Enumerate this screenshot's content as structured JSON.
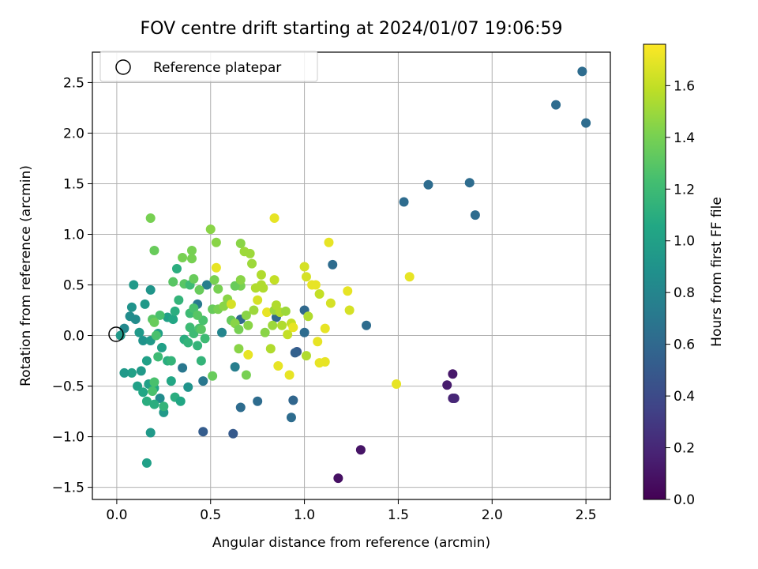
{
  "chart_data": {
    "type": "scatter",
    "title": "FOV centre drift starting at 2024/01/07 19:06:59",
    "xlabel": "Angular distance from reference (arcmin)",
    "ylabel": "Rotation from reference (arcmin)",
    "xlim": [
      -0.13,
      2.63
    ],
    "ylim": [
      -1.62,
      2.8
    ],
    "x_ticks": [
      0.0,
      0.5,
      1.0,
      1.5,
      2.0,
      2.5
    ],
    "y_ticks": [
      -1.5,
      -1.0,
      -0.5,
      0.0,
      0.5,
      1.0,
      1.5,
      2.0,
      2.5
    ],
    "x_tick_labels": [
      "0.0",
      "0.5",
      "1.0",
      "1.5",
      "2.0",
      "2.5"
    ],
    "y_tick_labels": [
      "−1.5",
      "−1.0",
      "−0.5",
      "0.0",
      "0.5",
      "1.0",
      "1.5",
      "2.0",
      "2.5"
    ],
    "grid": true,
    "colormap": "viridis",
    "colorbar": {
      "label": "Hours from first FF file",
      "range": [
        0.0,
        1.76
      ],
      "ticks": [
        0.0,
        0.2,
        0.4,
        0.6,
        0.8,
        1.0,
        1.2,
        1.4,
        1.6
      ],
      "tick_labels": [
        "0.0",
        "0.2",
        "0.4",
        "0.6",
        "0.8",
        "1.0",
        "1.2",
        "1.4",
        "1.6"
      ]
    },
    "legend": {
      "placement": "top-left",
      "entries": [
        {
          "label": "Reference platepar",
          "marker": "open-circle"
        }
      ]
    },
    "reference_point": {
      "x": 0.0,
      "y": 0.0
    },
    "points": [
      {
        "x": 1.18,
        "y": -1.41,
        "c": 0.08
      },
      {
        "x": 1.3,
        "y": -1.13,
        "c": 0.1
      },
      {
        "x": 1.76,
        "y": -0.49,
        "c": 0.14
      },
      {
        "x": 1.79,
        "y": -0.38,
        "c": 0.12
      },
      {
        "x": 1.79,
        "y": -0.62,
        "c": 0.18
      },
      {
        "x": 1.8,
        "y": -0.62,
        "c": 0.2
      },
      {
        "x": 2.48,
        "y": 2.61,
        "c": 0.62
      },
      {
        "x": 2.34,
        "y": 2.28,
        "c": 0.62
      },
      {
        "x": 2.5,
        "y": 2.1,
        "c": 0.62
      },
      {
        "x": 1.66,
        "y": 1.49,
        "c": 0.62
      },
      {
        "x": 1.88,
        "y": 1.51,
        "c": 0.62
      },
      {
        "x": 1.53,
        "y": 1.32,
        "c": 0.62
      },
      {
        "x": 1.91,
        "y": 1.19,
        "c": 0.62
      },
      {
        "x": 1.15,
        "y": 0.7,
        "c": 0.62
      },
      {
        "x": 1.33,
        "y": 0.1,
        "c": 0.62
      },
      {
        "x": 1.0,
        "y": 0.25,
        "c": 0.6
      },
      {
        "x": 1.0,
        "y": 0.03,
        "c": 0.62
      },
      {
        "x": 0.96,
        "y": -0.16,
        "c": 0.5
      },
      {
        "x": 0.95,
        "y": -0.17,
        "c": 0.55
      },
      {
        "x": 0.94,
        "y": -0.64,
        "c": 0.58
      },
      {
        "x": 0.93,
        "y": -0.81,
        "c": 0.62
      },
      {
        "x": 0.62,
        "y": -0.97,
        "c": 0.5
      },
      {
        "x": 0.46,
        "y": -0.95,
        "c": 0.52
      },
      {
        "x": 0.66,
        "y": -0.71,
        "c": 0.62
      },
      {
        "x": 0.75,
        "y": -0.65,
        "c": 0.62
      },
      {
        "x": 0.85,
        "y": 0.18,
        "c": 0.6
      },
      {
        "x": 0.66,
        "y": 0.16,
        "c": 0.6
      },
      {
        "x": 0.46,
        "y": -0.45,
        "c": 0.7
      },
      {
        "x": 0.35,
        "y": -0.32,
        "c": 0.7
      },
      {
        "x": 0.43,
        "y": 0.31,
        "c": 0.72
      },
      {
        "x": 0.48,
        "y": 0.5,
        "c": 0.75
      },
      {
        "x": 0.63,
        "y": -0.31,
        "c": 0.75
      },
      {
        "x": 0.56,
        "y": 0.03,
        "c": 0.8
      },
      {
        "x": 0.23,
        "y": -0.62,
        "c": 0.85
      },
      {
        "x": 0.38,
        "y": -0.51,
        "c": 0.9
      },
      {
        "x": 0.25,
        "y": -0.76,
        "c": 0.95
      },
      {
        "x": 0.18,
        "y": -0.96,
        "c": 0.95
      },
      {
        "x": 0.16,
        "y": -1.26,
        "c": 1.0
      },
      {
        "x": 0.04,
        "y": 0.07,
        "c": 0.82
      },
      {
        "x": 0.02,
        "y": 0.0,
        "c": 0.95
      },
      {
        "x": 0.07,
        "y": 0.19,
        "c": 0.85
      },
      {
        "x": 0.08,
        "y": 0.28,
        "c": 0.9
      },
      {
        "x": 0.1,
        "y": 0.16,
        "c": 0.85
      },
      {
        "x": 0.09,
        "y": 0.5,
        "c": 0.95
      },
      {
        "x": 0.15,
        "y": 0.31,
        "c": 0.95
      },
      {
        "x": 0.18,
        "y": 0.45,
        "c": 0.92
      },
      {
        "x": 0.12,
        "y": 0.03,
        "c": 0.95
      },
      {
        "x": 0.14,
        "y": -0.05,
        "c": 0.9
      },
      {
        "x": 0.18,
        "y": -0.05,
        "c": 0.95
      },
      {
        "x": 0.22,
        "y": 0.02,
        "c": 1.0
      },
      {
        "x": 0.24,
        "y": -0.12,
        "c": 1.0
      },
      {
        "x": 0.16,
        "y": -0.25,
        "c": 1.0
      },
      {
        "x": 0.13,
        "y": -0.35,
        "c": 0.95
      },
      {
        "x": 0.08,
        "y": -0.37,
        "c": 1.0
      },
      {
        "x": 0.04,
        "y": -0.37,
        "c": 0.95
      },
      {
        "x": 0.11,
        "y": -0.5,
        "c": 1.0
      },
      {
        "x": 0.14,
        "y": -0.56,
        "c": 1.05
      },
      {
        "x": 0.17,
        "y": -0.48,
        "c": 1.0
      },
      {
        "x": 0.2,
        "y": -0.52,
        "c": 1.05
      },
      {
        "x": 0.16,
        "y": -0.65,
        "c": 1.1
      },
      {
        "x": 0.2,
        "y": -0.68,
        "c": 1.1
      },
      {
        "x": 0.25,
        "y": -0.7,
        "c": 1.15
      },
      {
        "x": 0.29,
        "y": -0.45,
        "c": 1.05
      },
      {
        "x": 0.31,
        "y": -0.61,
        "c": 1.1
      },
      {
        "x": 0.34,
        "y": -0.65,
        "c": 1.05
      },
      {
        "x": 0.27,
        "y": -0.25,
        "c": 1.1
      },
      {
        "x": 0.29,
        "y": -0.25,
        "c": 1.15
      },
      {
        "x": 0.22,
        "y": -0.21,
        "c": 1.2
      },
      {
        "x": 0.2,
        "y": -0.46,
        "c": 1.25
      },
      {
        "x": 0.19,
        "y": -0.55,
        "c": 1.25
      },
      {
        "x": 0.27,
        "y": 0.18,
        "c": 1.0
      },
      {
        "x": 0.3,
        "y": 0.16,
        "c": 1.05
      },
      {
        "x": 0.31,
        "y": 0.24,
        "c": 1.1
      },
      {
        "x": 0.33,
        "y": 0.35,
        "c": 1.15
      },
      {
        "x": 0.23,
        "y": 0.2,
        "c": 1.25
      },
      {
        "x": 0.19,
        "y": 0.16,
        "c": 1.3
      },
      {
        "x": 0.2,
        "y": 0.13,
        "c": 1.35
      },
      {
        "x": 0.21,
        "y": 0.0,
        "c": 1.25
      },
      {
        "x": 0.36,
        "y": -0.04,
        "c": 1.1
      },
      {
        "x": 0.38,
        "y": -0.07,
        "c": 1.15
      },
      {
        "x": 0.39,
        "y": 0.08,
        "c": 1.2
      },
      {
        "x": 0.41,
        "y": 0.02,
        "c": 1.2
      },
      {
        "x": 0.43,
        "y": -0.1,
        "c": 1.15
      },
      {
        "x": 0.44,
        "y": 0.07,
        "c": 1.25
      },
      {
        "x": 0.45,
        "y": 0.06,
        "c": 1.3
      },
      {
        "x": 0.46,
        "y": 0.15,
        "c": 1.25
      },
      {
        "x": 0.47,
        "y": -0.03,
        "c": 1.2
      },
      {
        "x": 0.45,
        "y": -0.25,
        "c": 1.15
      },
      {
        "x": 0.51,
        "y": -0.4,
        "c": 1.35
      },
      {
        "x": 0.39,
        "y": 0.22,
        "c": 1.2
      },
      {
        "x": 0.41,
        "y": 0.27,
        "c": 1.25
      },
      {
        "x": 0.43,
        "y": 0.2,
        "c": 1.3
      },
      {
        "x": 0.3,
        "y": 0.53,
        "c": 1.3
      },
      {
        "x": 0.32,
        "y": 0.66,
        "c": 1.1
      },
      {
        "x": 0.36,
        "y": 0.51,
        "c": 1.3
      },
      {
        "x": 0.39,
        "y": 0.5,
        "c": 1.2
      },
      {
        "x": 0.41,
        "y": 0.56,
        "c": 1.35
      },
      {
        "x": 0.44,
        "y": 0.45,
        "c": 1.35
      },
      {
        "x": 0.35,
        "y": 0.77,
        "c": 1.4
      },
      {
        "x": 0.4,
        "y": 0.84,
        "c": 1.4
      },
      {
        "x": 0.4,
        "y": 0.76,
        "c": 1.4
      },
      {
        "x": 0.2,
        "y": 0.84,
        "c": 1.35
      },
      {
        "x": 0.18,
        "y": 1.16,
        "c": 1.4
      },
      {
        "x": 0.5,
        "y": 1.05,
        "c": 1.45
      },
      {
        "x": 0.53,
        "y": 0.92,
        "c": 1.45
      },
      {
        "x": 0.52,
        "y": 0.55,
        "c": 1.4
      },
      {
        "x": 0.54,
        "y": 0.46,
        "c": 1.4
      },
      {
        "x": 0.51,
        "y": 0.26,
        "c": 1.35
      },
      {
        "x": 0.54,
        "y": 0.26,
        "c": 1.4
      },
      {
        "x": 0.57,
        "y": 0.29,
        "c": 1.45
      },
      {
        "x": 0.59,
        "y": 0.36,
        "c": 1.45
      },
      {
        "x": 0.61,
        "y": 0.31,
        "c": 1.65
      },
      {
        "x": 0.61,
        "y": 0.15,
        "c": 1.35
      },
      {
        "x": 0.63,
        "y": 0.12,
        "c": 1.45
      },
      {
        "x": 0.65,
        "y": 0.06,
        "c": 1.4
      },
      {
        "x": 0.65,
        "y": -0.13,
        "c": 1.45
      },
      {
        "x": 0.66,
        "y": 0.49,
        "c": 1.4
      },
      {
        "x": 0.63,
        "y": 0.49,
        "c": 1.35
      },
      {
        "x": 0.66,
        "y": 0.55,
        "c": 1.45
      },
      {
        "x": 0.66,
        "y": 0.91,
        "c": 1.45
      },
      {
        "x": 0.68,
        "y": 0.83,
        "c": 1.5
      },
      {
        "x": 0.71,
        "y": 0.81,
        "c": 1.5
      },
      {
        "x": 0.72,
        "y": 0.71,
        "c": 1.5
      },
      {
        "x": 0.69,
        "y": 0.2,
        "c": 1.45
      },
      {
        "x": 0.7,
        "y": 0.1,
        "c": 1.45
      },
      {
        "x": 0.73,
        "y": 0.25,
        "c": 1.5
      },
      {
        "x": 0.75,
        "y": 0.35,
        "c": 1.65
      },
      {
        "x": 0.74,
        "y": 0.47,
        "c": 1.55
      },
      {
        "x": 0.77,
        "y": 0.5,
        "c": 1.55
      },
      {
        "x": 0.77,
        "y": 0.6,
        "c": 1.55
      },
      {
        "x": 0.78,
        "y": 0.47,
        "c": 1.55
      },
      {
        "x": 0.8,
        "y": 0.23,
        "c": 1.7
      },
      {
        "x": 0.79,
        "y": 0.03,
        "c": 1.45
      },
      {
        "x": 0.82,
        "y": -0.13,
        "c": 1.55
      },
      {
        "x": 0.83,
        "y": 0.1,
        "c": 1.5
      },
      {
        "x": 0.84,
        "y": 0.25,
        "c": 1.5
      },
      {
        "x": 0.84,
        "y": 0.55,
        "c": 1.6
      },
      {
        "x": 0.85,
        "y": 0.3,
        "c": 1.55
      },
      {
        "x": 0.88,
        "y": 0.1,
        "c": 1.55
      },
      {
        "x": 0.87,
        "y": 0.23,
        "c": 1.55
      },
      {
        "x": 0.9,
        "y": 0.24,
        "c": 1.5
      },
      {
        "x": 0.91,
        "y": 0.01,
        "c": 1.6
      },
      {
        "x": 0.93,
        "y": 0.12,
        "c": 1.6
      },
      {
        "x": 0.94,
        "y": 0.08,
        "c": 1.7
      },
      {
        "x": 0.92,
        "y": -0.39,
        "c": 1.7
      },
      {
        "x": 0.86,
        "y": -0.3,
        "c": 1.7
      },
      {
        "x": 0.7,
        "y": -0.19,
        "c": 1.7
      },
      {
        "x": 0.69,
        "y": -0.39,
        "c": 1.4
      },
      {
        "x": 0.84,
        "y": 1.16,
        "c": 1.7
      },
      {
        "x": 0.53,
        "y": 0.67,
        "c": 1.7
      },
      {
        "x": 1.0,
        "y": 0.68,
        "c": 1.65
      },
      {
        "x": 1.01,
        "y": 0.58,
        "c": 1.65
      },
      {
        "x": 1.04,
        "y": 0.5,
        "c": 1.7
      },
      {
        "x": 1.06,
        "y": 0.5,
        "c": 1.7
      },
      {
        "x": 1.02,
        "y": 0.19,
        "c": 1.55
      },
      {
        "x": 1.08,
        "y": 0.41,
        "c": 1.6
      },
      {
        "x": 1.14,
        "y": 0.32,
        "c": 1.65
      },
      {
        "x": 1.13,
        "y": 0.92,
        "c": 1.7
      },
      {
        "x": 1.23,
        "y": 0.44,
        "c": 1.7
      },
      {
        "x": 1.24,
        "y": 0.25,
        "c": 1.65
      },
      {
        "x": 1.11,
        "y": 0.07,
        "c": 1.7
      },
      {
        "x": 1.01,
        "y": -0.2,
        "c": 1.55
      },
      {
        "x": 1.07,
        "y": -0.06,
        "c": 1.7
      },
      {
        "x": 1.08,
        "y": -0.27,
        "c": 1.7
      },
      {
        "x": 1.11,
        "y": -0.26,
        "c": 1.7
      },
      {
        "x": 1.49,
        "y": -0.48,
        "c": 1.7
      },
      {
        "x": 1.56,
        "y": 0.58,
        "c": 1.7
      }
    ]
  }
}
